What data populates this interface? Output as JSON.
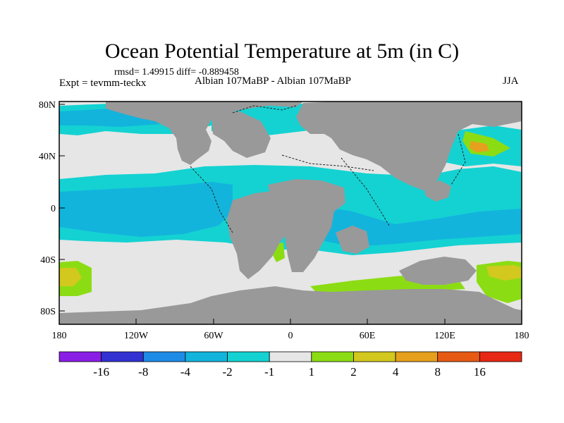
{
  "title": "Ocean Potential Temperature at 5m (in C)",
  "stats": "rmsd= 1.49915 diff= -0.889458",
  "experiment": "Expt = tevmm-teckx",
  "subtitle": "Albian   107MaBP - Albian   107MaBP",
  "season": "JJA",
  "lat_ticks": [
    "80N",
    "40N",
    "0",
    "40S",
    "80S"
  ],
  "lon_ticks": [
    "180",
    "120W",
    "60W",
    "0",
    "60E",
    "120E",
    "180"
  ],
  "colorbar": {
    "labels": [
      "-16",
      "-8",
      "-4",
      "-2",
      "-1",
      "1",
      "2",
      "4",
      "8",
      "16"
    ],
    "colors": [
      "#8a1ee6",
      "#3232d2",
      "#1e8ce6",
      "#12b4dc",
      "#14d2d2",
      "#e6e6e6",
      "#8cdc14",
      "#d2c81e",
      "#e6a01e",
      "#e65a14",
      "#e62814"
    ]
  },
  "colors": {
    "land": "#999999",
    "ocean_neutral": "#e6e6e6",
    "band_cool": "#14d2d2",
    "band_cold": "#12b4dc",
    "warm_green": "#8cdc14",
    "warm_yellow": "#d2c81e",
    "warm_orange": "#e6a01e"
  }
}
